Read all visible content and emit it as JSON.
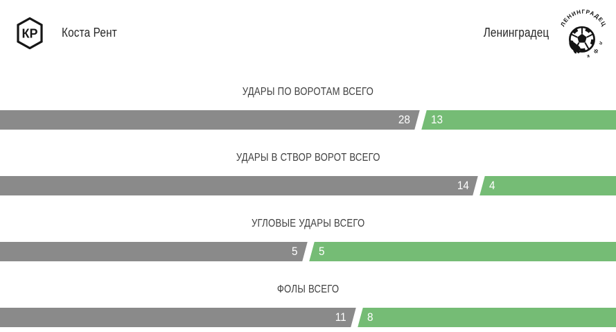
{
  "header": {
    "home_team": {
      "name": "Коста Рент",
      "logo_icon": "hexagon-monogram",
      "monogram": "КР"
    },
    "away_team": {
      "name": "Ленинградец",
      "logo_icon": "grunge-soccer-ball-emblem",
      "logo_arc_text": "ЛЕНИНГРАДЕЦ",
      "logo_sub_text": "л ф к"
    }
  },
  "colors": {
    "home_bar": "#8a8a8a",
    "away_bar": "#75bc75",
    "title_text": "#3e3e3e",
    "bar_value_text": "#ffffff",
    "logo_ink": "#141414"
  },
  "chart_data": {
    "type": "bar",
    "subtype": "head-to-head comparison bars",
    "teams": [
      "Коста Рент",
      "Ленинградец"
    ],
    "legend_position": "none",
    "grid": false,
    "rows": [
      {
        "label": "УДАРЫ ПО ВОРОТАМ ВСЕГО",
        "home": 28,
        "away": 13
      },
      {
        "label": "УДАРЫ В СТВОР ВОРОТ ВСЕГО",
        "home": 14,
        "away": 4
      },
      {
        "label": "УГЛОВЫЕ УДАРЫ ВСЕГО",
        "home": 5,
        "away": 5
      },
      {
        "label": "ФОЛЫ ВСЕГО",
        "home": 11,
        "away": 8
      }
    ]
  }
}
